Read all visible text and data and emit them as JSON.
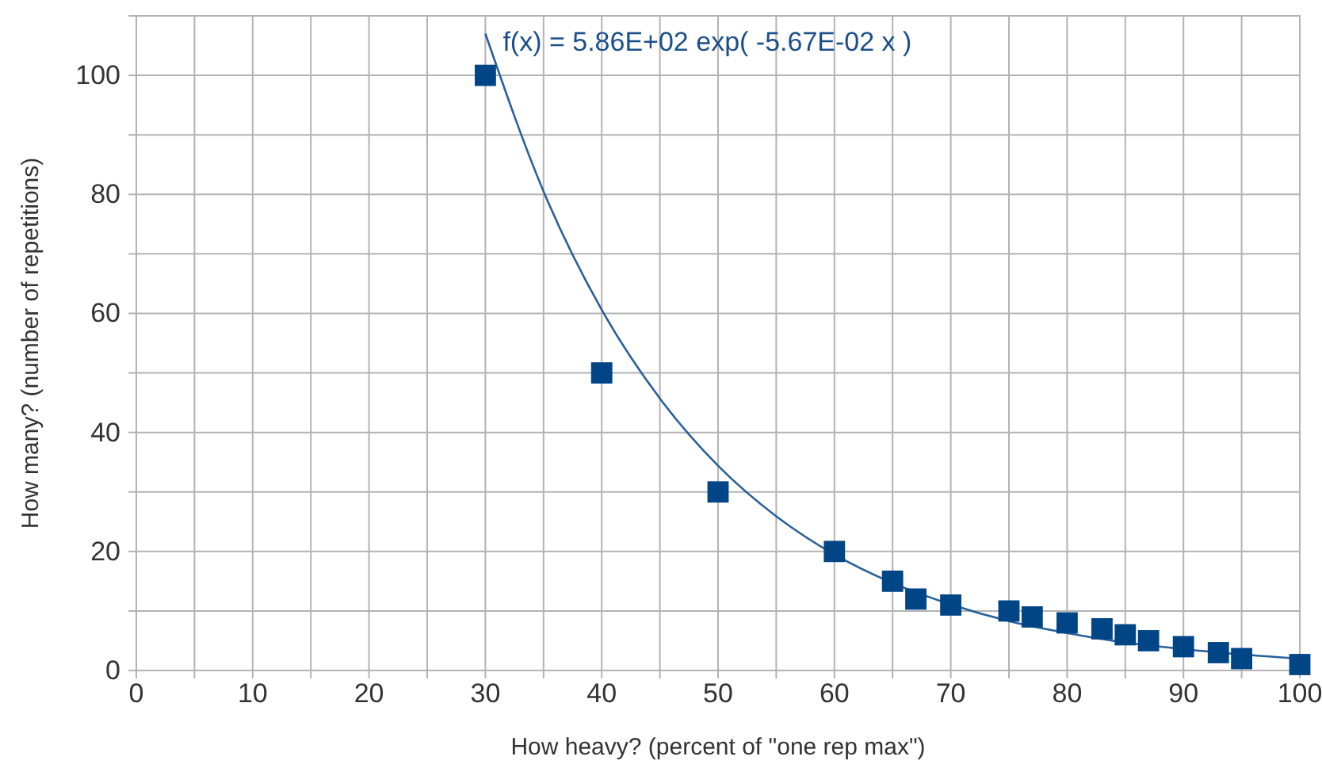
{
  "chart_data": {
    "type": "scatter",
    "xlabel": "How heavy? (percent of \"one rep max\")",
    "ylabel": "How many?  (number of repetitions)",
    "annotations": [
      "f(x) = 5.86E+02 exp( -5.67E-02 x )"
    ],
    "xlim": [
      0,
      100
    ],
    "ylim": [
      0,
      110
    ],
    "xticks": [
      0,
      {
        "value": 5,
        "label": null
      },
      10,
      {
        "value": 15,
        "label": null
      },
      20,
      {
        "value": 25,
        "label": null
      },
      30,
      {
        "value": 35,
        "label": null
      },
      40,
      {
        "value": 45,
        "label": null
      },
      50,
      {
        "value": 55,
        "label": null
      },
      60,
      {
        "value": 65,
        "label": null
      },
      70,
      {
        "value": 75,
        "label": null
      },
      80,
      {
        "value": 85,
        "label": null
      },
      90,
      {
        "value": 95,
        "label": null
      },
      100
    ],
    "yticks": [
      0,
      {
        "value": 10,
        "label": null
      },
      20,
      {
        "value": 30,
        "label": null
      },
      40,
      {
        "value": 50,
        "label": null
      },
      60,
      {
        "value": 70,
        "label": null
      },
      80,
      {
        "value": 90,
        "label": null
      },
      100
    ],
    "grid": true,
    "series": [
      {
        "type": "line",
        "color": "#2a6099",
        "marker": "none",
        "line_style": "solid",
        "x": [
          30,
          35,
          40,
          45,
          50,
          55,
          60,
          65,
          70,
          75,
          80,
          85,
          90,
          95,
          100
        ],
        "values": [
          107,
          80.5,
          60.6,
          45.7,
          34.4,
          25.9,
          19.5,
          14.7,
          11.1,
          8.3,
          6.3,
          4.7,
          3.6,
          2.7,
          2
        ]
      },
      {
        "color": "#004586",
        "marker": "square",
        "x": [
          30,
          40,
          50,
          60,
          65,
          67,
          70,
          75,
          77,
          80,
          83,
          85,
          87,
          90,
          93,
          95,
          100
        ],
        "values": [
          100,
          50,
          30,
          20,
          15,
          12,
          11,
          10,
          9,
          8,
          7,
          6,
          5,
          4,
          3,
          2,
          1
        ]
      }
    ]
  }
}
